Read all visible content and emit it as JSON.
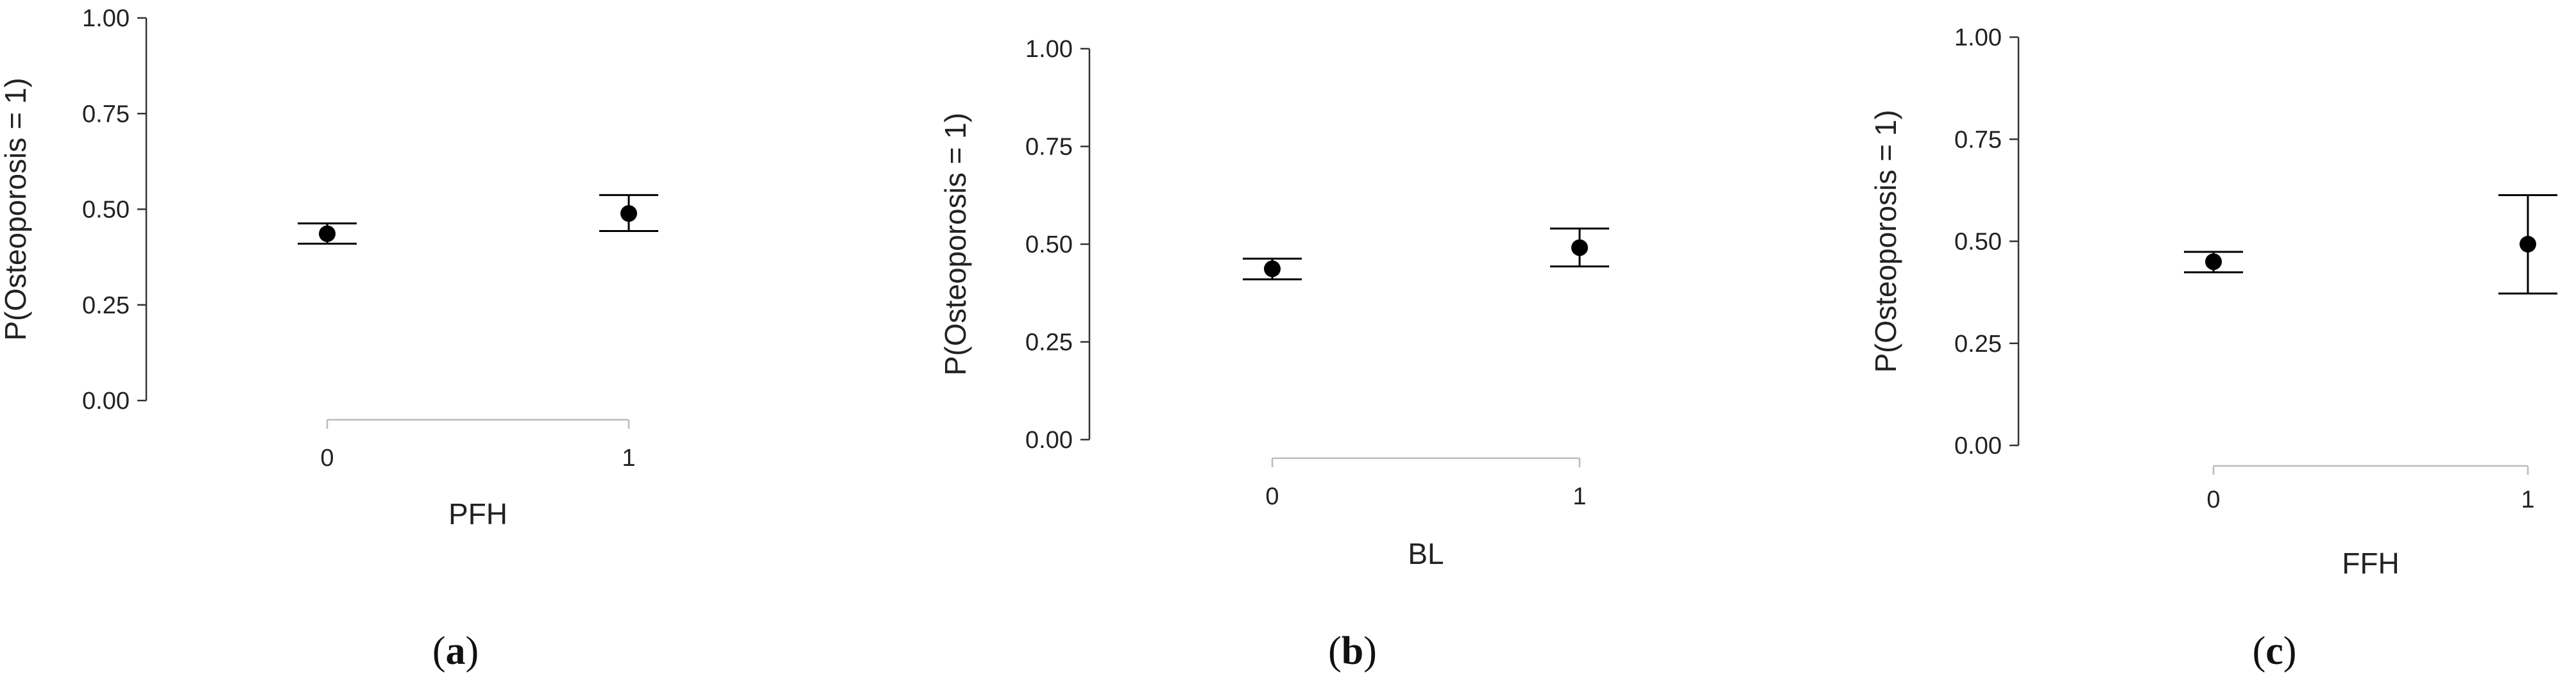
{
  "chart_data": [
    {
      "type": "scatter",
      "panel_label": "a",
      "xlabel": "PFH",
      "ylabel": "P(Osteoporosis = 1)",
      "categories": [
        "0",
        "1"
      ],
      "ylim": [
        0,
        1
      ],
      "yticks": [
        "0.00",
        "0.25",
        "0.50",
        "0.75",
        "1.00"
      ],
      "values": [
        0.436,
        0.489
      ],
      "ci_lower": [
        0.41,
        0.443
      ],
      "ci_upper": [
        0.463,
        0.537
      ]
    },
    {
      "type": "scatter",
      "panel_label": "b",
      "xlabel": "BL",
      "ylabel": "P(Osteoporosis = 1)",
      "categories": [
        "0",
        "1"
      ],
      "ylim": [
        0,
        1
      ],
      "yticks": [
        "0.00",
        "0.25",
        "0.50",
        "0.75",
        "1.00"
      ],
      "values": [
        0.437,
        0.491
      ],
      "ci_lower": [
        0.41,
        0.443
      ],
      "ci_upper": [
        0.463,
        0.54
      ]
    },
    {
      "type": "scatter",
      "panel_label": "c",
      "xlabel": "FFH",
      "ylabel": "P(Osteoporosis = 1)",
      "categories": [
        "0",
        "1"
      ],
      "ylim": [
        0,
        1
      ],
      "yticks": [
        "0.00",
        "0.25",
        "0.50",
        "0.75",
        "1.00"
      ],
      "values": [
        0.45,
        0.493
      ],
      "ci_lower": [
        0.424,
        0.372
      ],
      "ci_upper": [
        0.474,
        0.613
      ]
    }
  ]
}
